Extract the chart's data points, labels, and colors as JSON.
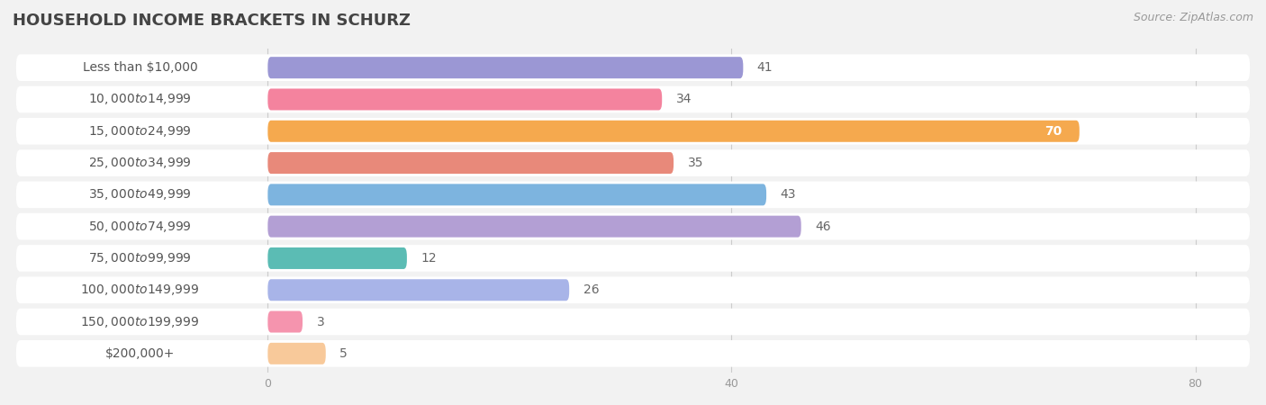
{
  "title": "HOUSEHOLD INCOME BRACKETS IN SCHURZ",
  "source": "Source: ZipAtlas.com",
  "categories": [
    "Less than $10,000",
    "$10,000 to $14,999",
    "$15,000 to $24,999",
    "$25,000 to $34,999",
    "$35,000 to $49,999",
    "$50,000 to $74,999",
    "$75,000 to $99,999",
    "$100,000 to $149,999",
    "$150,000 to $199,999",
    "$200,000+"
  ],
  "values": [
    41,
    34,
    70,
    35,
    43,
    46,
    12,
    26,
    3,
    5
  ],
  "bar_colors": [
    "#9b97d4",
    "#f4839e",
    "#f5a94e",
    "#e8897a",
    "#7db4df",
    "#b39fd4",
    "#5bbcb4",
    "#a8b4e8",
    "#f594ae",
    "#f8c99a"
  ],
  "xmax": 80,
  "xticks": [
    0,
    40,
    80
  ],
  "background_color": "#f2f2f2",
  "row_bg_color": "#ffffff",
  "label_color": "#555555",
  "value_color_inside": "#ffffff",
  "value_color_outside": "#666666",
  "title_fontsize": 13,
  "label_fontsize": 10,
  "value_fontsize": 10,
  "source_fontsize": 9,
  "title_color": "#444444",
  "tick_color": "#999999"
}
